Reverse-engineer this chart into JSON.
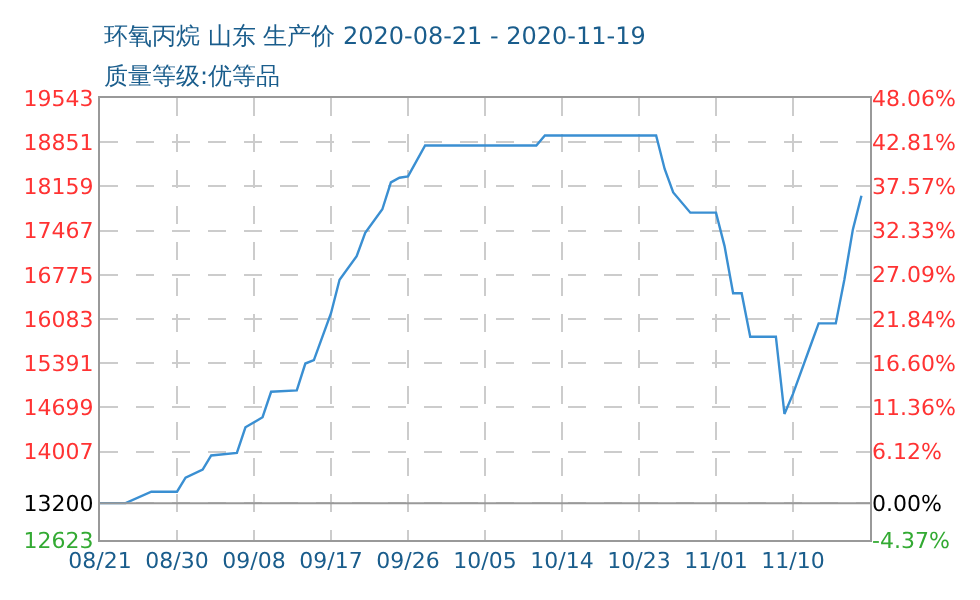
{
  "chart_data": {
    "type": "line",
    "title": "环氧丙烷 山东 生产价 2020-08-21 - 2020-11-19",
    "subtitle": "质量等级:优等品",
    "x": [
      "2020-08-21",
      "2020-08-24",
      "2020-08-27",
      "2020-08-30",
      "2020-08-31",
      "2020-09-02",
      "2020-09-03",
      "2020-09-06",
      "2020-09-07",
      "2020-09-09",
      "2020-09-10",
      "2020-09-13",
      "2020-09-14",
      "2020-09-15",
      "2020-09-17",
      "2020-09-18",
      "2020-09-20",
      "2020-09-21",
      "2020-09-23",
      "2020-09-24",
      "2020-09-25",
      "2020-09-26",
      "2020-09-28",
      "2020-10-11",
      "2020-10-12",
      "2020-10-25",
      "2020-10-26",
      "2020-10-27",
      "2020-10-29",
      "2020-11-01",
      "2020-11-02",
      "2020-11-03",
      "2020-11-04",
      "2020-11-05",
      "2020-11-08",
      "2020-11-09",
      "2020-11-10",
      "2020-11-12",
      "2020-11-13",
      "2020-11-15",
      "2020-11-16",
      "2020-11-17",
      "2020-11-18"
    ],
    "series": [
      {
        "color": "#3a8fd2",
        "values": [
          13200,
          13200,
          13379,
          13379,
          13599,
          13725,
          13946,
          13988,
          14387,
          14545,
          14944,
          14965,
          15386,
          15438,
          16173,
          16698,
          17066,
          17433,
          17801,
          18221,
          18295,
          18316,
          18799,
          18799,
          18956,
          18956,
          18431,
          18064,
          17748,
          17748,
          17224,
          16487,
          16487,
          15806,
          15806,
          14596,
          14911,
          15649,
          16014,
          16014,
          16698,
          17486,
          18013
        ]
      }
    ],
    "xlim": [
      "2020-08-21",
      "2020-11-19"
    ],
    "xticks": [
      {
        "value": "2020-08-21",
        "label": "08/21"
      },
      {
        "value": "2020-08-30",
        "label": "08/30"
      },
      {
        "value": "2020-09-08",
        "label": "09/08"
      },
      {
        "value": "2020-09-17",
        "label": "09/17"
      },
      {
        "value": "2020-09-26",
        "label": "09/26"
      },
      {
        "value": "2020-10-05",
        "label": "10/05"
      },
      {
        "value": "2020-10-14",
        "label": "10/14"
      },
      {
        "value": "2020-10-23",
        "label": "10/23"
      },
      {
        "value": "2020-11-01",
        "label": "11/01"
      },
      {
        "value": "2020-11-10",
        "label": "11/10"
      }
    ],
    "ylim": [
      12623,
      19543
    ],
    "yticks": [
      19543,
      18851,
      18159,
      17467,
      16775,
      16083,
      15391,
      14699,
      14007,
      13200,
      12623
    ],
    "y2lim": [
      -4.37,
      48.06
    ],
    "y2ticks": [
      {
        "value": 48.06,
        "label": "48.06%"
      },
      {
        "value": 42.81,
        "label": "42.81%"
      },
      {
        "value": 37.57,
        "label": "37.57%"
      },
      {
        "value": 32.33,
        "label": "32.33%"
      },
      {
        "value": 27.09,
        "label": "27.09%"
      },
      {
        "value": 21.84,
        "label": "21.84%"
      },
      {
        "value": 16.6,
        "label": "16.60%"
      },
      {
        "value": 11.36,
        "label": "11.36%"
      },
      {
        "value": 6.12,
        "label": "6.12%"
      },
      {
        "value": 0,
        "label": "0.00%"
      },
      {
        "value": -4.37,
        "label": "-4.37%"
      }
    ],
    "ref_lines": [
      {
        "axis": "y",
        "value": 13200,
        "color": "#999999"
      }
    ],
    "grid": true,
    "marker": "none",
    "line_style": "solid"
  }
}
